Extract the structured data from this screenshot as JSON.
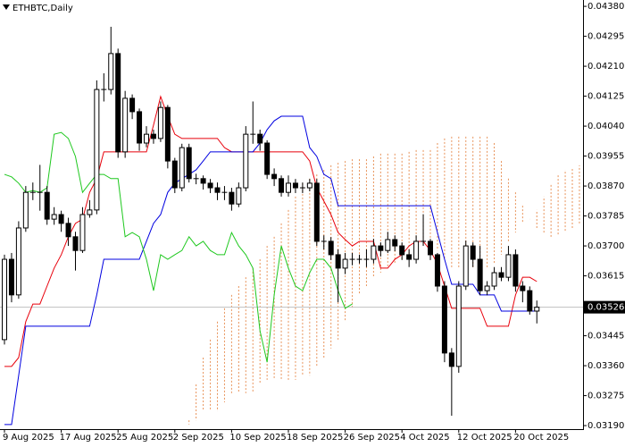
{
  "chart_data": {
    "type": "candlestick",
    "title": "ETHBTC,Daily",
    "categories": [
      "9 Aug 2025",
      null,
      null,
      null,
      null,
      null,
      null,
      null,
      "17 Aug 2025",
      null,
      null,
      null,
      null,
      null,
      null,
      null,
      "25 Aug 2025",
      null,
      null,
      null,
      null,
      null,
      null,
      null,
      "2 Sep 2025",
      null,
      null,
      null,
      null,
      null,
      null,
      null,
      "10 Sep 2025",
      null,
      null,
      null,
      null,
      null,
      null,
      null,
      "18 Sep 2025",
      null,
      null,
      null,
      null,
      null,
      null,
      null,
      "26 Sep 2025",
      null,
      null,
      null,
      null,
      null,
      null,
      null,
      "4 Oct 2025",
      null,
      null,
      null,
      null,
      null,
      null,
      null,
      "12 Oct 2025",
      null,
      null,
      null,
      null,
      null,
      null,
      null,
      "20 Oct 2025",
      null,
      null,
      null,
      null,
      null,
      null,
      null,
      null,
      null
    ],
    "open": [
      0.03434,
      0.03662,
      0.03561,
      0.03751,
      0.03852,
      0.03852,
      0.03852,
      0.03776,
      0.03789,
      0.03764,
      0.03726,
      0.03687,
      0.03789,
      0.03802,
      0.04144,
      0.04144,
      0.04246,
      0.03967,
      0.04119,
      0.04081,
      0.03992,
      0.04017,
      0.04005,
      0.04093,
      0.03941,
      0.03865,
      0.03979,
      0.03891,
      0.03891,
      0.03878,
      0.03865,
      0.03852,
      0.03852,
      0.03819,
      0.03865,
      0.04017,
      0.04017,
      0.03992,
      0.03903,
      0.03891,
      0.03852,
      0.03878,
      0.03865,
      0.03865,
      0.03878,
      0.03713,
      0.03713,
      0.03675,
      0.03637,
      0.03662,
      0.03662,
      0.03662,
      0.03662,
      0.037,
      0.03687,
      0.03718,
      0.037,
      0.03675,
      0.03662,
      0.03713,
      0.03713,
      0.03675,
      0.03586,
      0.03396,
      0.03358,
      0.03586,
      0.037,
      0.03662,
      0.03573,
      0.03586,
      0.03624,
      0.03611,
      0.03675,
      0.03586,
      0.03573,
      0.03515,
      null,
      null,
      null,
      null,
      null,
      null
    ],
    "high": [
      0.03675,
      0.0368,
      0.0377,
      0.0387,
      0.0388,
      0.0393,
      0.0387,
      0.0381,
      0.038,
      0.0378,
      0.0374,
      0.0381,
      0.0383,
      0.0417,
      0.0419,
      0.04322,
      0.0426,
      0.0414,
      0.0413,
      0.0409,
      0.0404,
      0.0403,
      0.0411,
      0.041,
      0.0395,
      0.0399,
      0.0399,
      0.03905,
      0.039,
      0.0389,
      0.0388,
      0.0387,
      0.03865,
      0.0388,
      0.0404,
      0.0411,
      0.0403,
      0.04,
      0.0392,
      0.039,
      0.039,
      0.0389,
      0.0388,
      0.0389,
      0.0389,
      0.0373,
      0.03725,
      0.0369,
      0.0368,
      0.0368,
      0.03675,
      0.0369,
      0.0372,
      0.0371,
      0.0374,
      0.0373,
      0.0371,
      0.0369,
      0.0373,
      0.0379,
      0.0372,
      0.0368,
      0.036,
      0.0341,
      0.036,
      0.03715,
      0.0371,
      0.037,
      0.036,
      0.0364,
      0.0364,
      0.037,
      0.0369,
      0.036,
      0.03585,
      0.03545,
      null,
      null,
      null,
      null,
      null,
      null
    ],
    "low": [
      0.0342,
      0.0354,
      0.0355,
      0.0374,
      0.0383,
      0.038,
      0.0376,
      0.0376,
      0.0374,
      0.037,
      0.0363,
      0.0368,
      0.0378,
      0.0379,
      0.0411,
      0.0413,
      0.0395,
      0.0395,
      0.0406,
      0.0397,
      0.0398,
      0.0399,
      0.03995,
      0.0392,
      0.0385,
      0.03855,
      0.0388,
      0.03875,
      0.0386,
      0.0385,
      0.0383,
      0.0383,
      0.038,
      0.0381,
      0.03855,
      0.0399,
      0.0397,
      0.0389,
      0.0387,
      0.0384,
      0.0384,
      0.0385,
      0.0385,
      0.03855,
      0.037,
      0.0369,
      0.0366,
      0.0354,
      0.0362,
      0.03645,
      0.0365,
      0.0364,
      0.0365,
      0.0367,
      0.0368,
      0.03685,
      0.0366,
      0.0364,
      0.0365,
      0.037,
      0.0366,
      0.0357,
      0.0337,
      0.03218,
      0.0334,
      0.03575,
      0.0364,
      0.0356,
      0.0356,
      0.03575,
      0.036,
      0.036,
      0.0357,
      0.0354,
      0.03505,
      0.0348,
      null,
      null,
      null,
      null,
      null,
      null
    ],
    "close": [
      0.03662,
      0.03561,
      0.03751,
      0.03852,
      0.03852,
      0.03852,
      0.03776,
      0.03789,
      0.03764,
      0.03726,
      0.03687,
      0.03789,
      0.03802,
      0.04144,
      0.04144,
      0.04246,
      0.03967,
      0.04119,
      0.04081,
      0.03992,
      0.04017,
      0.04005,
      0.04093,
      0.03941,
      0.03865,
      0.03979,
      0.03891,
      0.03891,
      0.03878,
      0.03865,
      0.03852,
      0.03852,
      0.03819,
      0.03865,
      0.04017,
      0.04017,
      0.03992,
      0.03903,
      0.03891,
      0.03852,
      0.03878,
      0.03865,
      0.03865,
      0.03878,
      0.03713,
      0.03713,
      0.03675,
      0.03637,
      0.03662,
      0.03662,
      0.03662,
      0.03662,
      0.037,
      0.03687,
      0.03718,
      0.037,
      0.03675,
      0.03662,
      0.03713,
      0.03713,
      0.03675,
      0.03586,
      0.03396,
      0.03358,
      0.03586,
      0.037,
      0.03662,
      0.03573,
      0.03586,
      0.03624,
      0.03611,
      0.03675,
      0.03586,
      0.03573,
      0.03515,
      0.03526,
      null,
      null,
      null,
      null,
      null,
      null
    ],
    "up_color": "#ffffff",
    "down_color": "#000000",
    "series": [
      {
        "color": "#e8000b",
        "values": [
          0.03358,
          0.03358,
          0.03383,
          0.03485,
          0.03535,
          0.03535,
          0.03586,
          0.03637,
          0.03675,
          0.03726,
          0.03764,
          0.03776,
          0.03852,
          0.03891,
          0.03967,
          0.03967,
          0.03967,
          0.03967,
          0.03967,
          0.03967,
          0.03967,
          0.04043,
          0.04124,
          0.04068,
          0.04017,
          0.04005,
          0.04005,
          0.04005,
          0.04005,
          0.04005,
          0.04005,
          0.03979,
          0.03967,
          0.03967,
          0.03967,
          0.03967,
          0.03967,
          0.03967,
          0.03967,
          0.03967,
          0.03967,
          0.03967,
          0.03967,
          0.03941,
          0.03865,
          0.03827,
          0.03789,
          0.03738,
          0.03718,
          0.037,
          0.03713,
          0.03713,
          0.03713,
          0.03637,
          0.03637,
          0.03662,
          0.03675,
          0.037,
          0.03713,
          0.03713,
          0.03687,
          0.03649,
          0.03586,
          0.03523,
          0.03523,
          0.03523,
          0.03523,
          0.03523,
          0.03472,
          0.03472,
          0.03472,
          0.03472,
          0.03561,
          0.03611,
          0.03611,
          0.03599,
          null,
          null,
          null,
          null,
          null,
          null
        ]
      },
      {
        "color": "#0000e0",
        "values": [
          0.03193,
          0.03193,
          0.03332,
          0.03472,
          0.03472,
          0.03472,
          0.03472,
          0.03472,
          0.03472,
          0.03472,
          0.03472,
          0.03472,
          0.03472,
          0.03561,
          0.03662,
          0.03662,
          0.03662,
          0.03662,
          0.03662,
          0.03662,
          0.03713,
          0.03764,
          0.03789,
          0.03852,
          0.03878,
          0.03891,
          0.03903,
          0.03916,
          0.03941,
          0.03967,
          0.03967,
          0.03967,
          0.03967,
          0.03967,
          0.03967,
          0.03967,
          0.03992,
          0.0403,
          0.04055,
          0.04068,
          0.04068,
          0.04068,
          0.04068,
          0.03979,
          0.03954,
          0.03903,
          0.03891,
          0.03814,
          0.03814,
          0.03814,
          0.03814,
          0.03814,
          0.03814,
          0.03814,
          0.03814,
          0.03814,
          0.03814,
          0.03814,
          0.03814,
          0.03814,
          0.03814,
          0.03738,
          0.03662,
          0.03591,
          0.03591,
          0.03591,
          0.03591,
          0.03561,
          0.03561,
          0.03561,
          0.03515,
          0.03515,
          0.03515,
          0.03515,
          0.03515,
          0.03515,
          null,
          null,
          null,
          null,
          null,
          null
        ]
      },
      {
        "color": "#1ec81e",
        "values": [
          0.03903,
          0.03896,
          0.03878,
          0.03852,
          0.03857,
          0.03852,
          0.03865,
          0.04017,
          0.04022,
          0.04005,
          0.03954,
          0.03852,
          0.03878,
          0.03903,
          0.03903,
          0.03891,
          0.03891,
          0.03726,
          0.03738,
          0.03726,
          0.03662,
          0.03573,
          0.03675,
          0.03662,
          0.03675,
          0.03687,
          0.03726,
          0.037,
          0.03713,
          0.03687,
          0.03675,
          0.03675,
          0.03738,
          0.037,
          0.03675,
          0.03637,
          0.03459,
          0.0337,
          0.03561,
          0.037,
          0.03637,
          0.03586,
          0.03573,
          0.03624,
          0.03662,
          0.03662,
          0.03637,
          0.03573,
          0.03523,
          0.03535,
          null,
          null,
          null,
          null,
          null,
          null,
          null,
          null,
          null,
          null,
          null,
          null,
          null,
          null,
          null,
          null,
          null,
          null,
          null,
          null,
          null,
          null,
          null,
          null,
          null,
          null,
          null,
          null,
          null,
          null,
          null,
          null
        ]
      }
    ],
    "cloud": {
      "color": "#e8935a",
      "span_a": [
        null,
        null,
        null,
        null,
        null,
        null,
        null,
        null,
        null,
        null,
        null,
        null,
        null,
        null,
        null,
        null,
        null,
        null,
        null,
        null,
        null,
        null,
        null,
        null,
        null,
        null,
        0.03205,
        0.03307,
        0.03383,
        0.03434,
        0.03485,
        0.03523,
        0.03561,
        0.03586,
        0.03611,
        0.03637,
        0.03662,
        0.037,
        0.03726,
        0.03764,
        0.03802,
        0.0384,
        0.03878,
        0.03891,
        0.03903,
        0.03916,
        0.03929,
        0.03936,
        0.03941,
        0.03946,
        0.03946,
        0.03946,
        0.03954,
        0.03962,
        0.03962,
        0.03962,
        0.03962,
        0.03967,
        0.03972,
        0.03972,
        0.03972,
        0.03992,
        0.04005,
        0.0401,
        0.0401,
        0.0401,
        0.0401,
        0.0401,
        0.0401,
        0.03992,
        0.03941,
        0.03891,
        0.03852,
        0.03814,
        0.03776,
        0.03751,
        0.03738,
        0.03726,
        0.03733,
        0.03743,
        0.03751,
        0.03764
      ],
      "span_b": [
        null,
        null,
        null,
        null,
        null,
        null,
        null,
        null,
        null,
        null,
        null,
        null,
        null,
        null,
        null,
        null,
        null,
        null,
        null,
        null,
        null,
        null,
        null,
        null,
        null,
        null,
        0.03193,
        0.03205,
        0.03231,
        0.03231,
        0.03231,
        0.03256,
        0.03282,
        0.03282,
        0.03282,
        0.03282,
        0.03307,
        0.0332,
        0.0332,
        0.0332,
        0.0332,
        0.0332,
        0.03332,
        0.03332,
        0.03358,
        0.03383,
        0.03409,
        0.03434,
        0.03485,
        0.03523,
        0.03561,
        0.03586,
        0.03611,
        0.03624,
        0.03637,
        0.03649,
        0.03662,
        0.03675,
        0.03687,
        0.037,
        0.037,
        0.03687,
        0.03662,
        0.03637,
        0.03637,
        0.03637,
        0.03637,
        0.03637,
        0.03637,
        0.03649,
        0.03675,
        0.03713,
        0.03738,
        0.03764,
        0.03776,
        0.03802,
        0.0384,
        0.03878,
        0.03903,
        0.03916,
        0.03921,
        0.03929
      ]
    },
    "ylim": [
      0.0318,
      0.04398
    ],
    "yticks": [
      {
        "value": 0.0438,
        "label": "0.04380"
      },
      {
        "value": 0.04295,
        "label": "0.04295"
      },
      {
        "value": 0.0421,
        "label": "0.04210"
      },
      {
        "value": 0.04125,
        "label": "0.04125"
      },
      {
        "value": 0.0404,
        "label": "0.04040"
      },
      {
        "value": 0.03955,
        "label": "0.03955"
      },
      {
        "value": 0.0387,
        "label": "0.03870"
      },
      {
        "value": 0.03785,
        "label": "0.03785"
      },
      {
        "value": 0.037,
        "label": "0.03700"
      },
      {
        "value": 0.03615,
        "label": "0.03615"
      },
      {
        "value": 0.03445,
        "label": "0.03445"
      },
      {
        "value": 0.0336,
        "label": "0.03360"
      },
      {
        "value": 0.03275,
        "label": "0.03275"
      },
      {
        "value": 0.0319,
        "label": "0.03190"
      }
    ],
    "last_price": {
      "value": 0.03526,
      "label": "0.03526"
    },
    "grid": false
  }
}
